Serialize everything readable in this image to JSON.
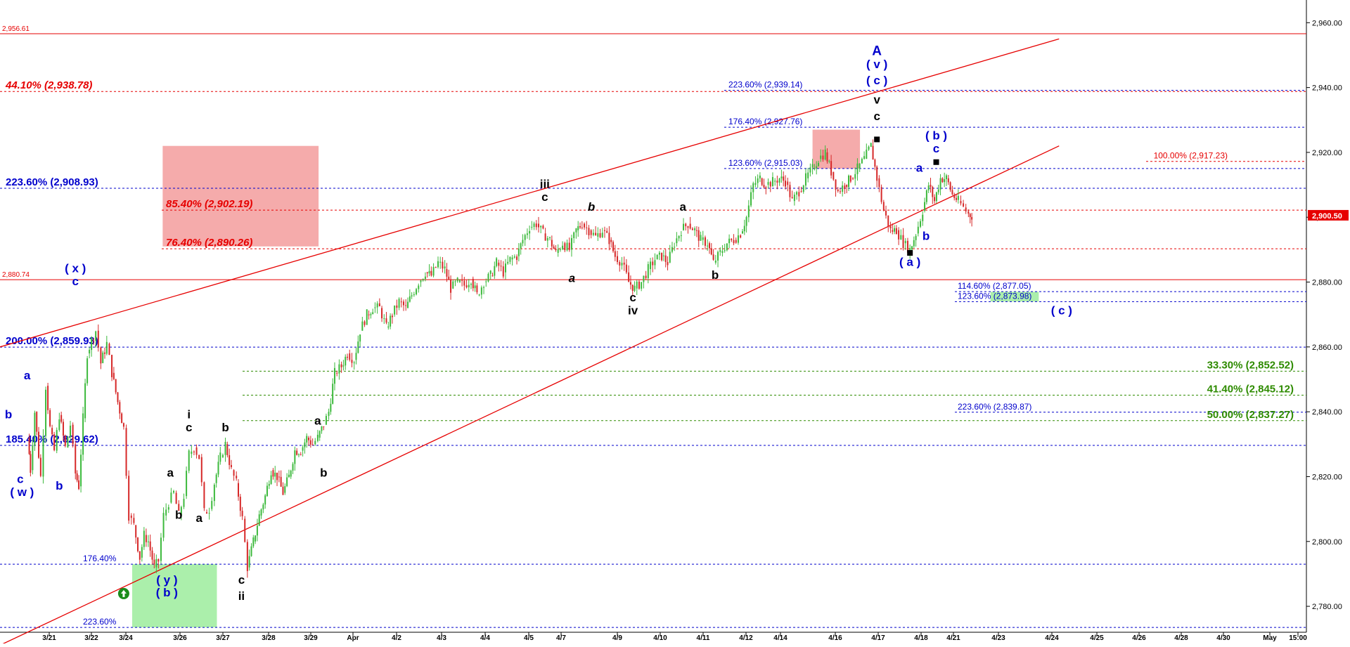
{
  "chart_data": {
    "type": "candlestick",
    "y_range": [
      2772,
      2967
    ],
    "x_ticks": [
      "3/21",
      "3/22",
      "3/24",
      "3/26",
      "3/27",
      "3/28",
      "3/29",
      "Apr",
      "4/2",
      "4/3",
      "4/4",
      "4/5",
      "4/7",
      "4/9",
      "4/10",
      "4/11",
      "4/12",
      "4/14",
      "4/16",
      "4/17",
      "4/18",
      "4/21",
      "4/23",
      "4/24",
      "4/25",
      "4/26",
      "4/28",
      "4/30",
      "May",
      "15:00"
    ],
    "y_ticks": [
      "2,960.00",
      "2,940.00",
      "2,920.00",
      "2,900.00",
      "2,880.00",
      "2,860.00",
      "2,840.00",
      "2,820.00",
      "2,800.00",
      "2,780.00"
    ],
    "y_tick_values": [
      2960,
      2940,
      2920,
      2900,
      2880,
      2860,
      2840,
      2820,
      2800,
      2780
    ],
    "last_price": "2,900.50",
    "last_price_value": 2900.5,
    "price_path": [
      [
        3.3,
        2832
      ],
      [
        3.6,
        2822
      ],
      [
        4.1,
        2840
      ],
      [
        4.8,
        2820
      ],
      [
        5.4,
        2848
      ],
      [
        5.9,
        2835
      ],
      [
        6.4,
        2828
      ],
      [
        7.0,
        2839
      ],
      [
        7.7,
        2829
      ],
      [
        8.3,
        2836
      ],
      [
        8.9,
        2821
      ],
      [
        9.3,
        2817
      ],
      [
        9.8,
        2838
      ],
      [
        10.3,
        2858
      ],
      [
        10.8,
        2862
      ],
      [
        11.3,
        2865
      ],
      [
        11.9,
        2855
      ],
      [
        12.6,
        2861
      ],
      [
        13.2,
        2852
      ],
      [
        13.9,
        2843
      ],
      [
        14.6,
        2835
      ],
      [
        15.2,
        2808
      ],
      [
        15.8,
        2805
      ],
      [
        16.5,
        2795
      ],
      [
        17.0,
        2802
      ],
      [
        17.5,
        2800
      ],
      [
        18.2,
        2792
      ],
      [
        18.7,
        2794
      ],
      [
        19.3,
        2808
      ],
      [
        19.9,
        2812
      ],
      [
        20.5,
        2815
      ],
      [
        21.1,
        2808
      ],
      [
        21.7,
        2814
      ],
      [
        22.3,
        2827
      ],
      [
        22.9,
        2829
      ],
      [
        23.5,
        2826
      ],
      [
        24.1,
        2809
      ],
      [
        24.7,
        2810
      ],
      [
        25.3,
        2818
      ],
      [
        26.0,
        2826
      ],
      [
        26.6,
        2830
      ],
      [
        27.3,
        2822
      ],
      [
        27.9,
        2818
      ],
      [
        28.6,
        2807
      ],
      [
        29.2,
        2792
      ],
      [
        29.9,
        2800
      ],
      [
        30.6,
        2808
      ],
      [
        31.3,
        2814
      ],
      [
        32.0,
        2822
      ],
      [
        32.7,
        2820
      ],
      [
        33.4,
        2815
      ],
      [
        34.1,
        2820
      ],
      [
        34.8,
        2828
      ],
      [
        35.5,
        2828
      ],
      [
        36.2,
        2832
      ],
      [
        36.9,
        2830
      ],
      [
        37.5,
        2832
      ],
      [
        38.2,
        2836
      ],
      [
        38.8,
        2840
      ],
      [
        39.5,
        2852
      ],
      [
        40.3,
        2854
      ],
      [
        41.0,
        2858
      ],
      [
        41.8,
        2856
      ],
      [
        42.5,
        2865
      ],
      [
        43.3,
        2870
      ],
      [
        44.0,
        2872
      ],
      [
        44.8,
        2872
      ],
      [
        45.6,
        2866
      ],
      [
        46.3,
        2870
      ],
      [
        47.1,
        2874
      ],
      [
        47.9,
        2872
      ],
      [
        48.6,
        2876
      ],
      [
        49.4,
        2880
      ],
      [
        50.2,
        2883
      ],
      [
        50.9,
        2882
      ],
      [
        51.7,
        2886
      ],
      [
        52.5,
        2884
      ],
      [
        53.2,
        2878
      ],
      [
        54.0,
        2880
      ],
      [
        54.8,
        2879
      ],
      [
        55.6,
        2881
      ],
      [
        56.3,
        2876
      ],
      [
        57.1,
        2880
      ],
      [
        57.9,
        2882
      ],
      [
        58.6,
        2886
      ],
      [
        59.4,
        2883
      ],
      [
        60.2,
        2887
      ],
      [
        61.0,
        2888
      ],
      [
        61.7,
        2893
      ],
      [
        62.5,
        2897
      ],
      [
        63.3,
        2898
      ],
      [
        64.1,
        2895
      ],
      [
        64.9,
        2893
      ],
      [
        65.6,
        2889
      ],
      [
        66.4,
        2892
      ],
      [
        67.2,
        2890
      ],
      [
        68.0,
        2896
      ],
      [
        68.7,
        2898
      ],
      [
        69.5,
        2896
      ],
      [
        70.3,
        2894
      ],
      [
        71.1,
        2896
      ],
      [
        71.9,
        2893
      ],
      [
        72.6,
        2888
      ],
      [
        73.4,
        2886
      ],
      [
        74.2,
        2880
      ],
      [
        74.9,
        2878
      ],
      [
        75.7,
        2880
      ],
      [
        76.5,
        2884
      ],
      [
        77.3,
        2887
      ],
      [
        78.1,
        2888
      ],
      [
        78.8,
        2886
      ],
      [
        79.6,
        2892
      ],
      [
        80.4,
        2896
      ],
      [
        81.2,
        2898
      ],
      [
        82.0,
        2896
      ],
      [
        82.7,
        2893
      ],
      [
        83.5,
        2892
      ],
      [
        84.2,
        2886
      ],
      [
        85.0,
        2889
      ],
      [
        85.8,
        2892
      ],
      [
        86.6,
        2893
      ],
      [
        87.4,
        2895
      ],
      [
        88.1,
        2900
      ],
      [
        88.9,
        2910
      ],
      [
        89.7,
        2912
      ],
      [
        90.4,
        2910
      ],
      [
        91.2,
        2911
      ],
      [
        92.0,
        2912
      ],
      [
        92.7,
        2911
      ],
      [
        93.5,
        2905
      ],
      [
        94.3,
        2908
      ],
      [
        95.1,
        2912
      ],
      [
        95.9,
        2915
      ],
      [
        96.6,
        2918
      ],
      [
        97.4,
        2920
      ],
      [
        98.1,
        2914
      ],
      [
        98.9,
        2908
      ],
      [
        99.7,
        2910
      ],
      [
        100.4,
        2912
      ],
      [
        101.2,
        2915
      ],
      [
        102.0,
        2918
      ],
      [
        102.8,
        2922
      ],
      [
        103.5,
        2912
      ],
      [
        104.3,
        2902
      ],
      [
        105.1,
        2896
      ],
      [
        105.8,
        2896
      ],
      [
        106.6,
        2892
      ],
      [
        107.4,
        2890
      ],
      [
        108.1,
        2895
      ],
      [
        108.9,
        2902
      ],
      [
        109.6,
        2910
      ],
      [
        110.3,
        2905
      ],
      [
        111.0,
        2912
      ],
      [
        111.7,
        2912
      ],
      [
        112.4,
        2907
      ],
      [
        113.1,
        2905
      ],
      [
        113.7,
        2903
      ],
      [
        114.3,
        2901
      ],
      [
        114.7,
        2900.5
      ]
    ],
    "horizontal_levels": [
      {
        "label": "2,956.61",
        "price": 2956.61,
        "color": "#e60000",
        "style": "solid",
        "side": "left"
      },
      {
        "label": "44.10% (2,938.78)",
        "price": 2938.78,
        "color": "#e60000",
        "style": "dashed",
        "side": "left"
      },
      {
        "label": "223.60% (2,939.14)",
        "price": 2939.14,
        "color": "#0000cc",
        "style": "dashed",
        "side": "mid"
      },
      {
        "label": "176.40% (2,927.76)",
        "price": 2927.76,
        "color": "#0000cc",
        "style": "dashed",
        "side": "mid"
      },
      {
        "label": "100.00% (2,917.23)",
        "price": 2917.23,
        "color": "#e60000",
        "style": "dashed",
        "side": "right"
      },
      {
        "label": "123.60% (2,915.03)",
        "price": 2915.03,
        "color": "#0000cc",
        "style": "dashed",
        "side": "mid"
      },
      {
        "label": "223.60% (2,908.93)",
        "price": 2908.93,
        "color": "#0000cc",
        "style": "dashed",
        "side": "left"
      },
      {
        "label": "85.40% (2,902.19)",
        "price": 2902.19,
        "color": "#e60000",
        "style": "dashed",
        "side": "left"
      },
      {
        "label": "76.40% (2,890.26)",
        "price": 2890.26,
        "color": "#e60000",
        "style": "dashed",
        "side": "left"
      },
      {
        "label": "2,880.74",
        "price": 2880.74,
        "color": "#e60000",
        "style": "solid",
        "side": "left"
      },
      {
        "label": "114.60% (2,877.05)",
        "price": 2877.05,
        "color": "#0000cc",
        "style": "dashed",
        "side": "mid"
      },
      {
        "label": "123.60% (2,873.98)",
        "price": 2873.98,
        "color": "#0000cc",
        "style": "dashed",
        "side": "mid"
      },
      {
        "label": "200.00% (2,859.93)",
        "price": 2859.93,
        "color": "#0000cc",
        "style": "dashed",
        "side": "left"
      },
      {
        "label": "33.30% (2,852.52)",
        "price": 2852.52,
        "color": "#2e8b00",
        "style": "dashed",
        "side": "right"
      },
      {
        "label": "41.40% (2,845.12)",
        "price": 2845.12,
        "color": "#2e8b00",
        "style": "dashed",
        "side": "right"
      },
      {
        "label": "223.60% (2,839.87)",
        "price": 2839.87,
        "color": "#0000cc",
        "style": "dashed",
        "side": "mid"
      },
      {
        "label": "50.00% (2,837.27)",
        "price": 2837.27,
        "color": "#2e8b00",
        "style": "dashed",
        "side": "right"
      },
      {
        "label": "185.40% (2,829.62)",
        "price": 2829.62,
        "color": "#0000cc",
        "style": "dashed",
        "side": "left"
      },
      {
        "label": "176.40%",
        "price": 2793,
        "color": "#0000cc",
        "style": "dashed",
        "side": "left"
      },
      {
        "label": "223.60%",
        "price": 2773.5,
        "color": "#0000cc",
        "style": "dashed",
        "side": "left"
      }
    ],
    "zones": [
      {
        "color": "#f4a6a6",
        "x0": 19.2,
        "x1": 37.6,
        "p0": 2891,
        "p1": 2922
      },
      {
        "color": "#f4a6a6",
        "x0": 95.9,
        "x1": 101.5,
        "p0": 2915,
        "p1": 2927
      },
      {
        "color": "#a6eea6",
        "x0": 15.6,
        "x1": 25.6,
        "p0": 2773.5,
        "p1": 2793
      },
      {
        "color": "#a6eea6",
        "x0": 116.9,
        "x1": 122.6,
        "p0": 2874,
        "p1": 2877
      }
    ],
    "trendlines": [
      {
        "color": "#e60000",
        "x0": 0.0,
        "p0": 2860,
        "x1": 125.0,
        "p1": 2955
      },
      {
        "color": "#e60000",
        "x0": 0.0,
        "p0": 2768,
        "x1": 125.0,
        "p1": 2922
      }
    ],
    "wave_labels": [
      {
        "text": "A",
        "x": 103.5,
        "p": 2950,
        "color": "#0000cc"
      },
      {
        "text": "( v )",
        "x": 103.5,
        "p": 2946,
        "color": "#0000cc"
      },
      {
        "text": "( c )",
        "x": 103.5,
        "p": 2941,
        "color": "#0000cc"
      },
      {
        "text": "v",
        "x": 103.5,
        "p": 2935,
        "color": "#000000"
      },
      {
        "text": "c",
        "x": 103.5,
        "p": 2930,
        "color": "#000000"
      },
      {
        "text": "( b )",
        "x": 110.5,
        "p": 2924,
        "color": "#0000cc"
      },
      {
        "text": "c",
        "x": 110.5,
        "p": 2920,
        "color": "#0000cc"
      },
      {
        "text": "a",
        "x": 108.5,
        "p": 2914,
        "color": "#0000cc"
      },
      {
        "text": "b",
        "x": 109.3,
        "p": 2893,
        "color": "#0000cc"
      },
      {
        "text": "( a )",
        "x": 107.4,
        "p": 2885,
        "color": "#0000cc"
      },
      {
        "text": "( c )",
        "x": 125.3,
        "p": 2870,
        "color": "#0000cc"
      },
      {
        "text": "iii",
        "x": 64.3,
        "p": 2909,
        "color": "#000000"
      },
      {
        "text": "c",
        "x": 64.3,
        "p": 2905,
        "color": "#000000"
      },
      {
        "text": "b",
        "x": 69.8,
        "p": 2902,
        "color": "#000000",
        "italic": true
      },
      {
        "text": "a",
        "x": 67.5,
        "p": 2880,
        "color": "#000000",
        "italic": true
      },
      {
        "text": "a",
        "x": 80.6,
        "p": 2902,
        "color": "#000000"
      },
      {
        "text": "b",
        "x": 84.4,
        "p": 2881,
        "color": "#000000"
      },
      {
        "text": "c",
        "x": 74.7,
        "p": 2874,
        "color": "#000000"
      },
      {
        "text": "iv",
        "x": 74.7,
        "p": 2870,
        "color": "#000000"
      },
      {
        "text": "( x )",
        "x": 8.9,
        "p": 2883,
        "color": "#0000cc"
      },
      {
        "text": "c",
        "x": 8.9,
        "p": 2879,
        "color": "#0000cc"
      },
      {
        "text": "a",
        "x": 3.2,
        "p": 2850,
        "color": "#0000cc"
      },
      {
        "text": "b",
        "x": 1.0,
        "p": 2838,
        "color": "#0000cc"
      },
      {
        "text": "b",
        "x": 7.0,
        "p": 2816,
        "color": "#0000cc"
      },
      {
        "text": "c",
        "x": 2.4,
        "p": 2818,
        "color": "#0000cc"
      },
      {
        "text": "( w )",
        "x": 2.6,
        "p": 2814,
        "color": "#0000cc"
      },
      {
        "text": "i",
        "x": 22.3,
        "p": 2838,
        "color": "#000000"
      },
      {
        "text": "c",
        "x": 22.3,
        "p": 2834,
        "color": "#000000"
      },
      {
        "text": "b",
        "x": 26.6,
        "p": 2834,
        "color": "#000000"
      },
      {
        "text": "a",
        "x": 20.1,
        "p": 2820,
        "color": "#000000"
      },
      {
        "text": "b",
        "x": 21.1,
        "p": 2807,
        "color": "#000000"
      },
      {
        "text": "a",
        "x": 23.5,
        "p": 2806,
        "color": "#000000"
      },
      {
        "text": "a",
        "x": 37.5,
        "p": 2836,
        "color": "#000000"
      },
      {
        "text": "b",
        "x": 38.2,
        "p": 2820,
        "color": "#000000"
      },
      {
        "text": "c",
        "x": 28.5,
        "p": 2787,
        "color": "#000000"
      },
      {
        "text": "ii",
        "x": 28.5,
        "p": 2782,
        "color": "#000000"
      },
      {
        "text": "( y )",
        "x": 19.7,
        "p": 2787,
        "color": "#0000cc"
      },
      {
        "text": "( b )",
        "x": 19.7,
        "p": 2783,
        "color": "#0000cc"
      }
    ],
    "markers": [
      {
        "x": 103.5,
        "p": 2924,
        "shape": "square"
      },
      {
        "x": 110.5,
        "p": 2917,
        "shape": "square"
      },
      {
        "x": 107.4,
        "p": 2889,
        "shape": "square"
      }
    ],
    "arrow_marker": {
      "x": 14.6,
      "p": 2790,
      "color": "#1a8c1a"
    }
  }
}
